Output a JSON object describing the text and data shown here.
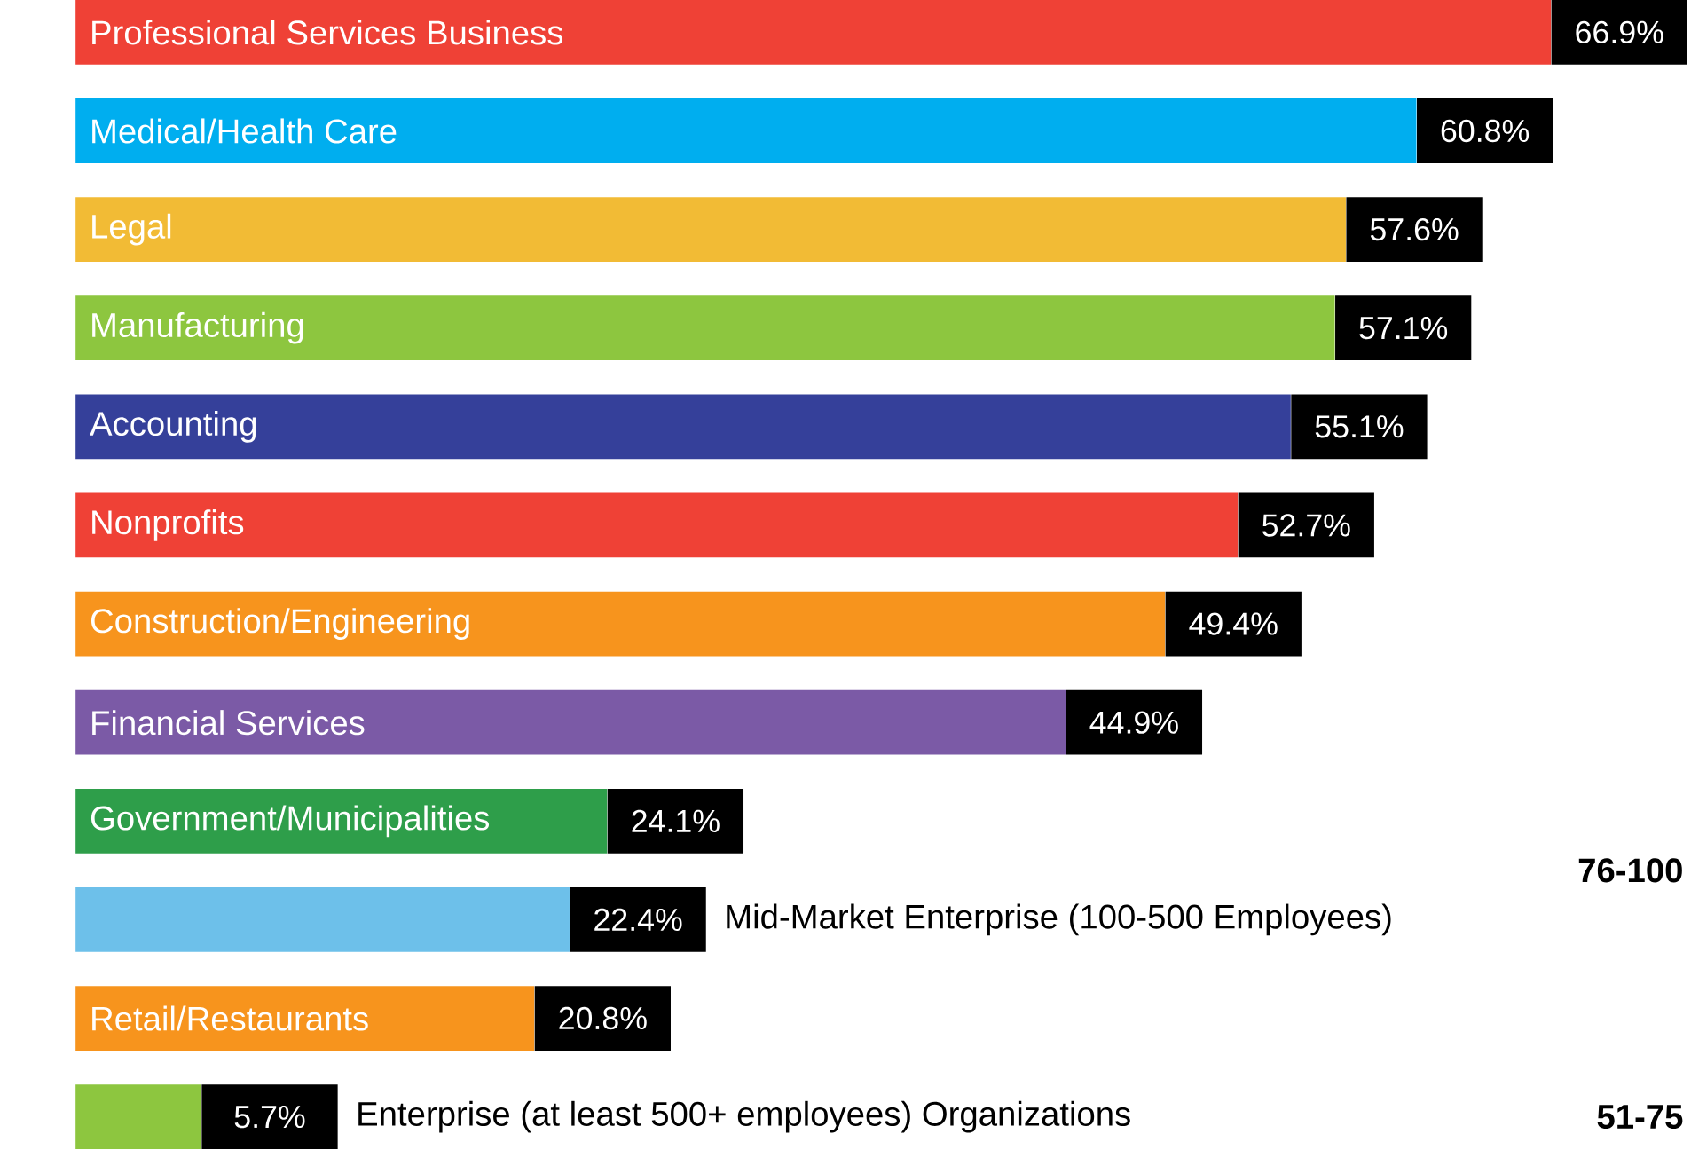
{
  "chart_data": {
    "type": "bar",
    "orientation": "horizontal",
    "categories": [
      "Professional Services Business",
      "Medical/Health Care",
      "Legal",
      "Manufacturing",
      "Accounting",
      "Nonprofits",
      "Construction/Engineering",
      "Financial Services",
      "Government/Municipalities",
      "Mid-Market Enterprise (100-500 Employees)",
      "Retail/Restaurants",
      "Enterprise (at least 500+ employees) Organizations"
    ],
    "values": [
      66.9,
      60.8,
      57.6,
      57.1,
      55.1,
      52.7,
      49.4,
      44.9,
      24.1,
      22.4,
      20.8,
      5.7
    ],
    "value_labels": [
      "66.9%",
      "60.8%",
      "57.6%",
      "57.1%",
      "55.1%",
      "52.7%",
      "49.4%",
      "44.9%",
      "24.1%",
      "22.4%",
      "20.8%",
      "5.7%"
    ],
    "colors": [
      "#ef4136",
      "#00aeef",
      "#f2bb35",
      "#8dc63f",
      "#35409a",
      "#ef4136",
      "#f7941d",
      "#7b5aa6",
      "#2e9e4a",
      "#6dc0ea",
      "#f7941d",
      "#8dc63f"
    ],
    "annotations": [
      "76-100",
      "51-75"
    ]
  }
}
